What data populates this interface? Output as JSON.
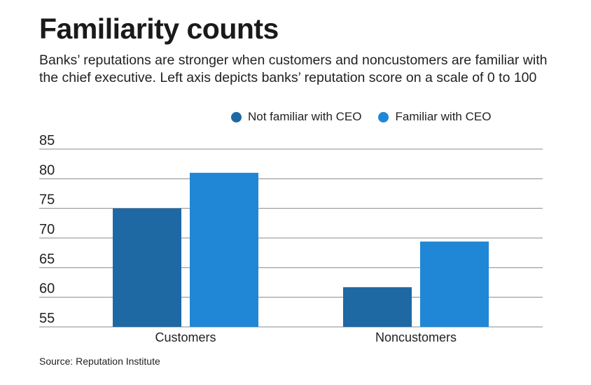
{
  "title": "Familiarity counts",
  "subtitle": "Banks’ reputations are stronger when customers and noncustomers are familiar with the chief executive. Left axis depicts banks’ reputation score on a scale of 0 to 100",
  "source": "Source: Reputation Institute",
  "colors": {
    "not_familiar": "#1e69a4",
    "familiar": "#1f87d6",
    "grid": "#8a8a8a",
    "text": "#222222"
  },
  "chart_data": {
    "type": "bar",
    "title": "Familiarity counts",
    "xlabel": "",
    "ylabel": "",
    "categories": [
      "Customers",
      "Noncustomers"
    ],
    "series": [
      {
        "name": "Not familiar with CEO",
        "values": [
          75,
          61.7
        ]
      },
      {
        "name": "Familiar with CEO",
        "values": [
          81,
          69.4
        ]
      }
    ],
    "ylim": [
      55,
      85
    ],
    "yticks": [
      55,
      60,
      65,
      70,
      75,
      80,
      85
    ],
    "legend_position": "top-right",
    "grid": true
  }
}
